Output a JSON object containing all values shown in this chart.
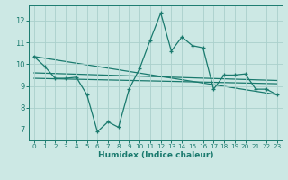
{
  "title": "",
  "xlabel": "Humidex (Indice chaleur)",
  "ylabel": "",
  "bg_color": "#cce8e4",
  "grid_color": "#aad0cc",
  "line_color": "#1a7a6e",
  "text_color": "#1a7a6e",
  "xlim": [
    -0.5,
    23.5
  ],
  "ylim": [
    6.5,
    12.7
  ],
  "xticks": [
    0,
    1,
    2,
    3,
    4,
    5,
    6,
    7,
    8,
    9,
    10,
    11,
    12,
    13,
    14,
    15,
    16,
    17,
    18,
    19,
    20,
    21,
    22,
    23
  ],
  "yticks": [
    7,
    8,
    9,
    10,
    11,
    12
  ],
  "series1_x": [
    0,
    1,
    2,
    3,
    4,
    5,
    6,
    7,
    8,
    9,
    10,
    11,
    12,
    13,
    14,
    15,
    16,
    17,
    18,
    19,
    20,
    21,
    22,
    23
  ],
  "series1_y": [
    10.35,
    9.9,
    9.35,
    9.35,
    9.4,
    8.6,
    6.9,
    7.35,
    7.1,
    8.85,
    9.8,
    11.1,
    12.35,
    10.6,
    11.25,
    10.85,
    10.75,
    8.85,
    9.5,
    9.5,
    9.55,
    8.85,
    8.85,
    8.6
  ],
  "series2_x": [
    0,
    23
  ],
  "series2_y": [
    10.35,
    8.6
  ],
  "series3_x": [
    0,
    23
  ],
  "series3_y": [
    9.6,
    9.25
  ],
  "series4_x": [
    0,
    23
  ],
  "series4_y": [
    9.35,
    9.1
  ]
}
